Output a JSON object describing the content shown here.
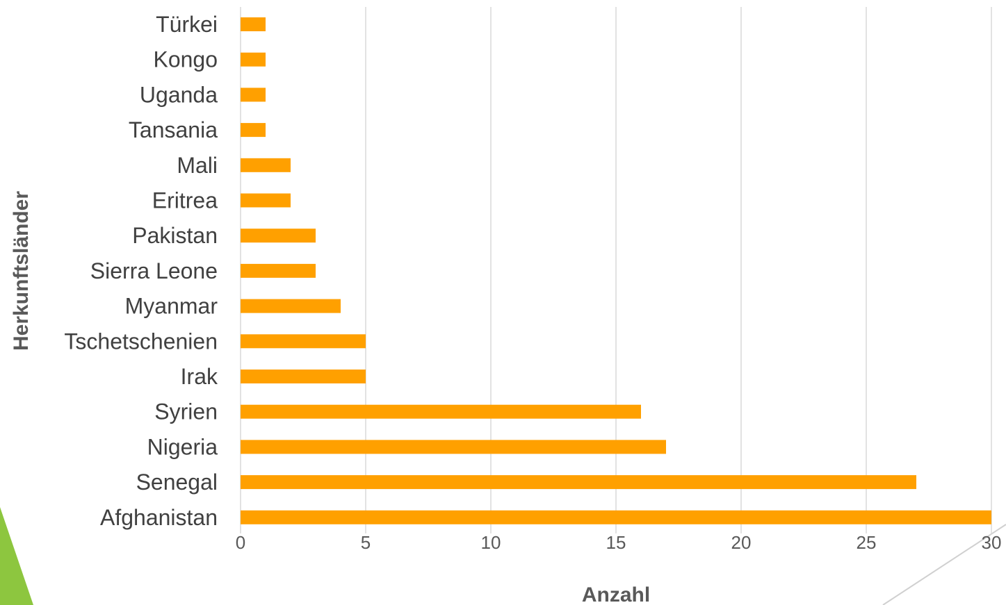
{
  "chart_data": {
    "type": "bar",
    "orientation": "horizontal",
    "categories": [
      "Türkei",
      "Kongo",
      "Uganda",
      "Tansania",
      "Mali",
      "Eritrea",
      "Pakistan",
      "Sierra Leone",
      "Myanmar",
      "Tschetschenien",
      "Irak",
      "Syrien",
      "Nigeria",
      "Senegal",
      "Afghanistan"
    ],
    "values": [
      1,
      1,
      1,
      1,
      2,
      2,
      3,
      3,
      4,
      5,
      5,
      16,
      17,
      27,
      30
    ],
    "xlabel": "Anzahl",
    "ylabel": "Herkunftsländer",
    "xlim": [
      0,
      30
    ],
    "xticks": [
      0,
      5,
      10,
      15,
      20,
      25,
      30
    ],
    "grid": "vertical",
    "legend": "none",
    "colors": {
      "bar": "#FFA000",
      "grid": "#D9D9D9",
      "decor_left": "#8DC63F",
      "decor_line": "#D0D0D0"
    }
  }
}
